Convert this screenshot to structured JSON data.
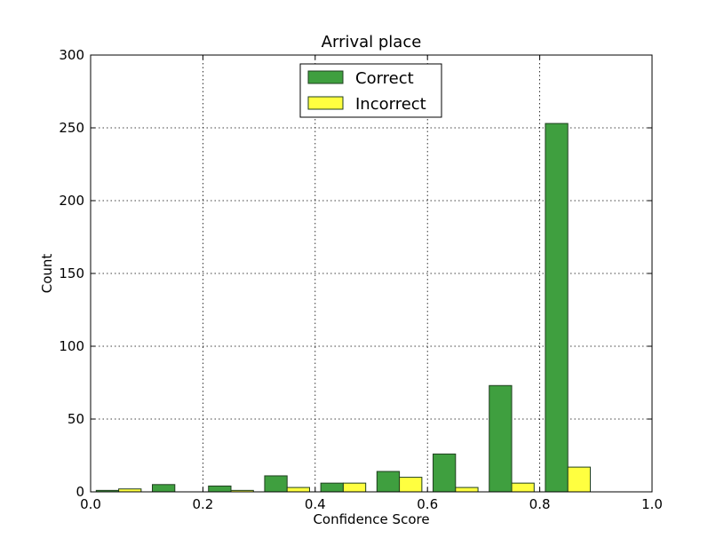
{
  "chart_data": {
    "type": "bar",
    "title": "Arrival place",
    "xlabel": "Confidence Score",
    "ylabel": "Count",
    "xlim": [
      0.0,
      1.0
    ],
    "ylim": [
      0,
      300
    ],
    "xticks": [
      "0.0",
      "0.2",
      "0.4",
      "0.6",
      "0.8",
      "1.0"
    ],
    "yticks": [
      "0",
      "50",
      "100",
      "150",
      "200",
      "250",
      "300"
    ],
    "grid": true,
    "legend_position": "top-center",
    "bin_edges": [
      0.0,
      0.1,
      0.2,
      0.3,
      0.4,
      0.5,
      0.6,
      0.7,
      0.8,
      0.9,
      1.0
    ],
    "series": [
      {
        "name": "Correct",
        "color": "#3f9f3f",
        "values": [
          1,
          5,
          4,
          11,
          6,
          14,
          26,
          73,
          253,
          0
        ]
      },
      {
        "name": "Incorrect",
        "color": "#ffff40",
        "values": [
          2,
          0,
          1,
          3,
          6,
          10,
          3,
          6,
          17,
          0
        ]
      }
    ]
  }
}
